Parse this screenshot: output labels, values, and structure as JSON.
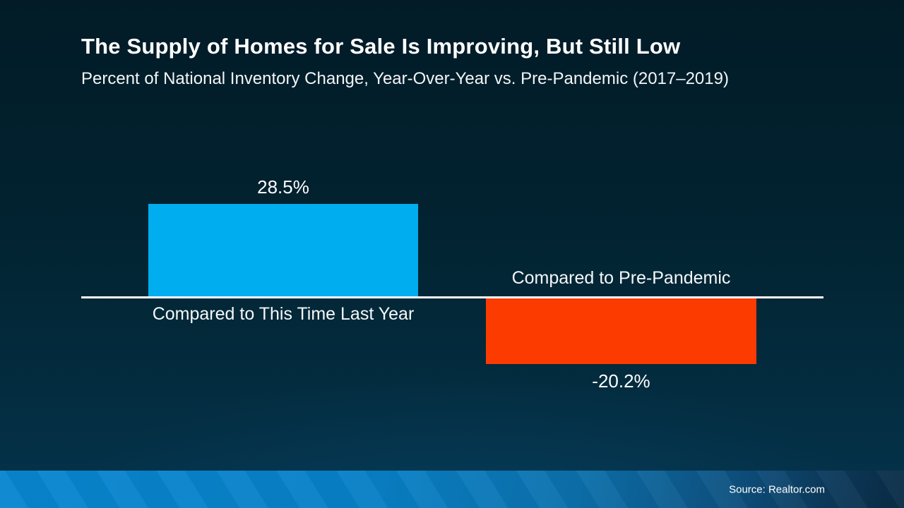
{
  "header": {
    "title": "The Supply of Homes for Sale Is Improving, But Still Low",
    "subtitle": "Percent of National Inventory Change, Year-Over-Year vs. Pre-Pandemic (2017–2019)"
  },
  "footer": {
    "source": "Source: Realtor.com"
  },
  "colors": {
    "background_top": "#021B27",
    "background_bottom": "#04334C",
    "positive_bar": "#00ADEF",
    "negative_bar": "#FC3B00",
    "axis_line": "#FFFFFF",
    "text": "#FFFFFF",
    "footer_gradient_left": "#0886D0",
    "footer_gradient_right": "#0A2C46"
  },
  "chart_data": {
    "type": "bar",
    "title": "The Supply of Homes for Sale Is Improving, But Still Low",
    "subtitle": "Percent of National Inventory Change, Year-Over-Year vs. Pre-Pandemic (2017–2019)",
    "categories": [
      "Compared to This Time Last Year",
      "Compared to Pre-Pandemic"
    ],
    "values": [
      28.5,
      -20.2
    ],
    "value_labels": [
      "28.5%",
      "-20.2%"
    ],
    "unit": "%",
    "baseline": 0,
    "orientation": "vertical",
    "series_colors": [
      "#00ADEF",
      "#FC3B00"
    ],
    "grid": false,
    "legend": false,
    "value_label_position": "outside-end",
    "category_label_position": "opposite-baseline",
    "source": "Source: Realtor.com"
  }
}
